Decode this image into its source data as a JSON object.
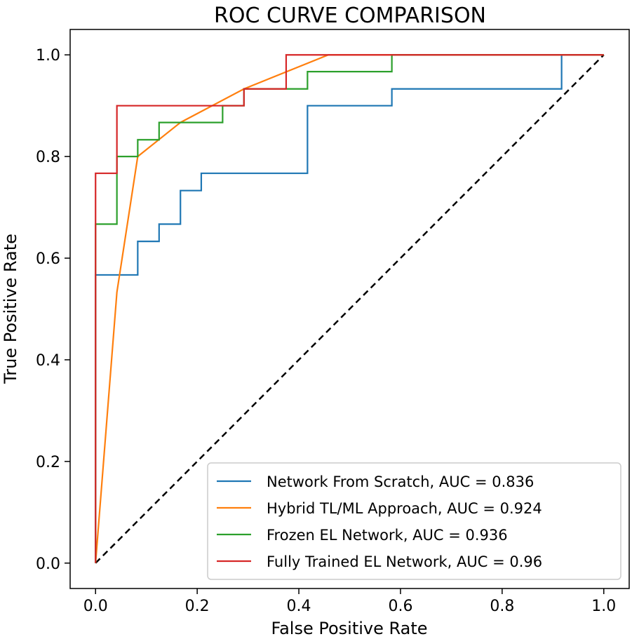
{
  "chart_data": {
    "type": "line",
    "title": "ROC CURVE COMPARISON",
    "xlabel": "False Positive Rate",
    "ylabel": "True Positive Rate",
    "xlim": [
      0.0,
      1.0
    ],
    "ylim": [
      0.0,
      1.0
    ],
    "xticks": [
      "0.0",
      "0.2",
      "0.4",
      "0.6",
      "0.8",
      "1.0"
    ],
    "yticks": [
      "0.0",
      "0.2",
      "0.4",
      "0.6",
      "0.8",
      "1.0"
    ],
    "grid": false,
    "legend_position": "lower-right",
    "series": [
      {
        "name": "Network From Scratch, AUC = 0.836",
        "color": "#1f77b4",
        "x": [
          0.0,
          0.0,
          0.083,
          0.083,
          0.125,
          0.125,
          0.167,
          0.167,
          0.208,
          0.208,
          0.417,
          0.417,
          0.583,
          0.583,
          0.917,
          0.917,
          1.0
        ],
        "y": [
          0.0,
          0.567,
          0.567,
          0.633,
          0.633,
          0.667,
          0.667,
          0.733,
          0.733,
          0.767,
          0.767,
          0.9,
          0.9,
          0.933,
          0.933,
          1.0,
          1.0
        ]
      },
      {
        "name": "Hybrid TL/ML Approach, AUC = 0.924",
        "color": "#ff7f0e",
        "x": [
          0.0,
          0.042,
          0.083,
          0.167,
          0.292,
          0.458,
          1.0
        ],
        "y": [
          0.0,
          0.533,
          0.8,
          0.867,
          0.933,
          1.0,
          1.0
        ]
      },
      {
        "name": "Frozen EL Network, AUC = 0.936",
        "color": "#2ca02c",
        "x": [
          0.0,
          0.0,
          0.042,
          0.042,
          0.083,
          0.083,
          0.125,
          0.125,
          0.25,
          0.25,
          0.292,
          0.292,
          0.417,
          0.417,
          0.583,
          0.583,
          1.0
        ],
        "y": [
          0.0,
          0.667,
          0.667,
          0.8,
          0.8,
          0.833,
          0.833,
          0.867,
          0.867,
          0.9,
          0.9,
          0.933,
          0.933,
          0.967,
          0.967,
          1.0,
          1.0
        ]
      },
      {
        "name": "Fully Trained EL Network, AUC = 0.96",
        "color": "#d62728",
        "x": [
          0.0,
          0.0,
          0.042,
          0.042,
          0.292,
          0.292,
          0.375,
          0.375,
          1.0
        ],
        "y": [
          0.0,
          0.767,
          0.767,
          0.9,
          0.9,
          0.933,
          0.933,
          1.0,
          1.0
        ]
      }
    ],
    "reference_line": {
      "style": "dashed",
      "color": "#000000",
      "x": [
        0.0,
        1.0
      ],
      "y": [
        0.0,
        1.0
      ]
    }
  }
}
